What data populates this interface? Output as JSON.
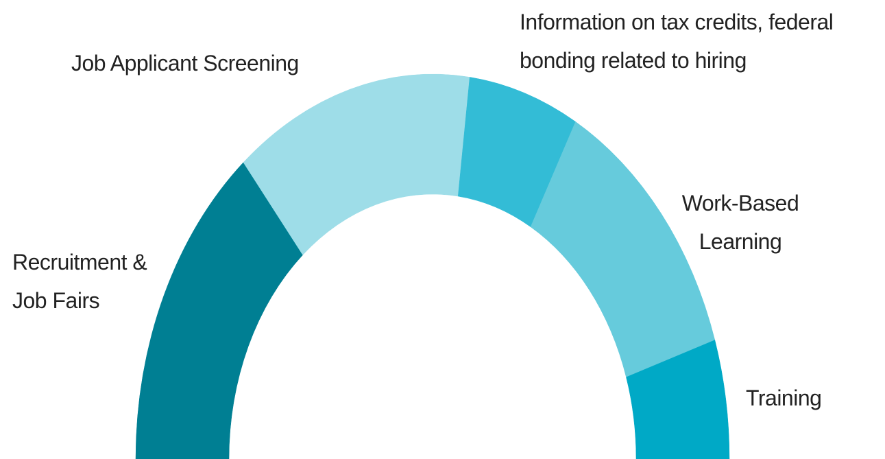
{
  "chart_data": {
    "type": "semi-donut",
    "categories": [
      "Recruitment & Job Fairs",
      "Job Applicant Screening",
      "Information on tax credits, federal bonding related to hiring",
      "Work-Based Learning",
      "Training"
    ],
    "values": [
      28,
      26,
      12,
      24,
      10
    ],
    "colors": [
      "#007f93",
      "#9edde8",
      "#33bcd6",
      "#66cbdc",
      "#00a9c6"
    ]
  }
}
